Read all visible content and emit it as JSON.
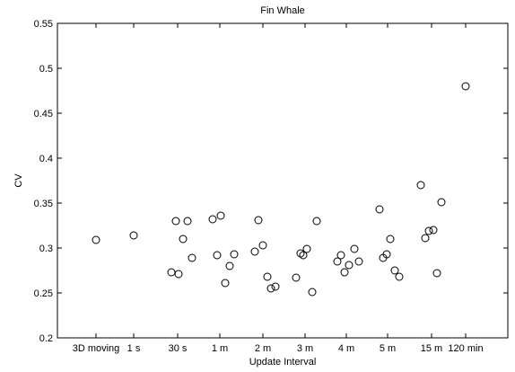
{
  "chart_data": {
    "type": "scatter",
    "title": "Fin Whale",
    "xlabel": "Update Interval",
    "ylabel": "CV",
    "categories": [
      "3D moving",
      "1 s",
      "30 s",
      "1 m",
      "2 m",
      "3 m",
      "4 m",
      "5 m",
      "15 m",
      "120 min"
    ],
    "ylim": [
      0.2,
      0.55
    ],
    "yticks": [
      "0.2",
      "0.25",
      "0.3",
      "0.35",
      "0.4",
      "0.45",
      "0.5",
      "0.55"
    ],
    "grid": false,
    "marker": "open circle",
    "marker_color": "#000000",
    "points": [
      {
        "x": "3D moving",
        "y": 0.309
      },
      {
        "x": "1 s",
        "y": 0.314
      },
      {
        "x": "30 s",
        "y": 0.273
      },
      {
        "x": "30 s",
        "y": 0.33
      },
      {
        "x": "30 s",
        "y": 0.271
      },
      {
        "x": "30 s",
        "y": 0.31
      },
      {
        "x": "30 s",
        "y": 0.33
      },
      {
        "x": "30 s",
        "y": 0.289
      },
      {
        "x": "1 m",
        "y": 0.332
      },
      {
        "x": "1 m",
        "y": 0.292
      },
      {
        "x": "1 m",
        "y": 0.336
      },
      {
        "x": "1 m",
        "y": 0.261
      },
      {
        "x": "1 m",
        "y": 0.28
      },
      {
        "x": "1 m",
        "y": 0.293
      },
      {
        "x": "2 m",
        "y": 0.296
      },
      {
        "x": "2 m",
        "y": 0.331
      },
      {
        "x": "2 m",
        "y": 0.303
      },
      {
        "x": "2 m",
        "y": 0.268
      },
      {
        "x": "2 m",
        "y": 0.255
      },
      {
        "x": "2 m",
        "y": 0.257
      },
      {
        "x": "3 m",
        "y": 0.267
      },
      {
        "x": "3 m",
        "y": 0.294
      },
      {
        "x": "3 m",
        "y": 0.292
      },
      {
        "x": "3 m",
        "y": 0.299
      },
      {
        "x": "3 m",
        "y": 0.251
      },
      {
        "x": "3 m",
        "y": 0.33
      },
      {
        "x": "4 m",
        "y": 0.285
      },
      {
        "x": "4 m",
        "y": 0.292
      },
      {
        "x": "4 m",
        "y": 0.273
      },
      {
        "x": "4 m",
        "y": 0.281
      },
      {
        "x": "4 m",
        "y": 0.299
      },
      {
        "x": "4 m",
        "y": 0.285
      },
      {
        "x": "5 m",
        "y": 0.343
      },
      {
        "x": "5 m",
        "y": 0.289
      },
      {
        "x": "5 m",
        "y": 0.293
      },
      {
        "x": "5 m",
        "y": 0.31
      },
      {
        "x": "5 m",
        "y": 0.275
      },
      {
        "x": "5 m",
        "y": 0.268
      },
      {
        "x": "15 m",
        "y": 0.37
      },
      {
        "x": "15 m",
        "y": 0.311
      },
      {
        "x": "15 m",
        "y": 0.319
      },
      {
        "x": "15 m",
        "y": 0.32
      },
      {
        "x": "15 m",
        "y": 0.272
      },
      {
        "x": "15 m",
        "y": 0.351
      },
      {
        "x": "120 min",
        "y": 0.48
      }
    ]
  }
}
